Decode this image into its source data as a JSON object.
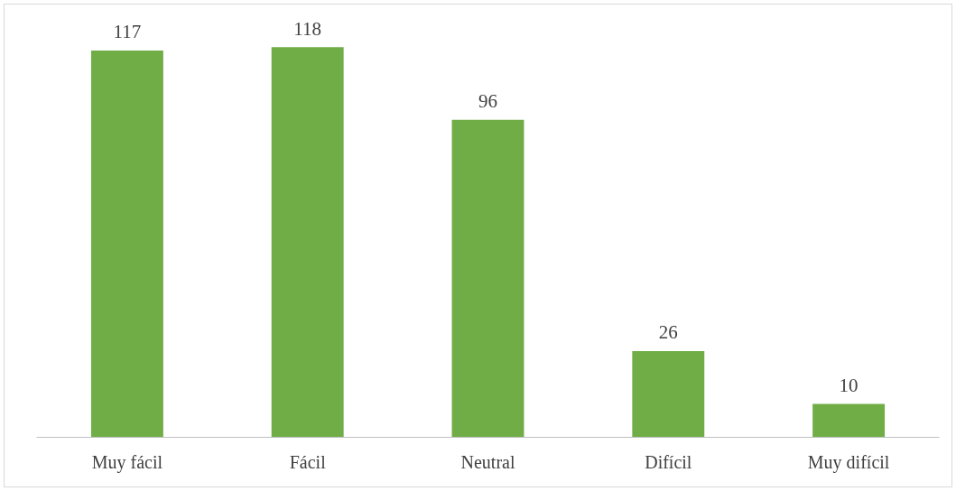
{
  "chart_data": {
    "type": "bar",
    "categories": [
      "Muy fácil",
      "Fácil",
      "Neutral",
      "Difícil",
      "Muy difícil"
    ],
    "values": [
      117,
      118,
      96,
      26,
      10
    ],
    "color": "#70ad47",
    "data_labels": true
  }
}
